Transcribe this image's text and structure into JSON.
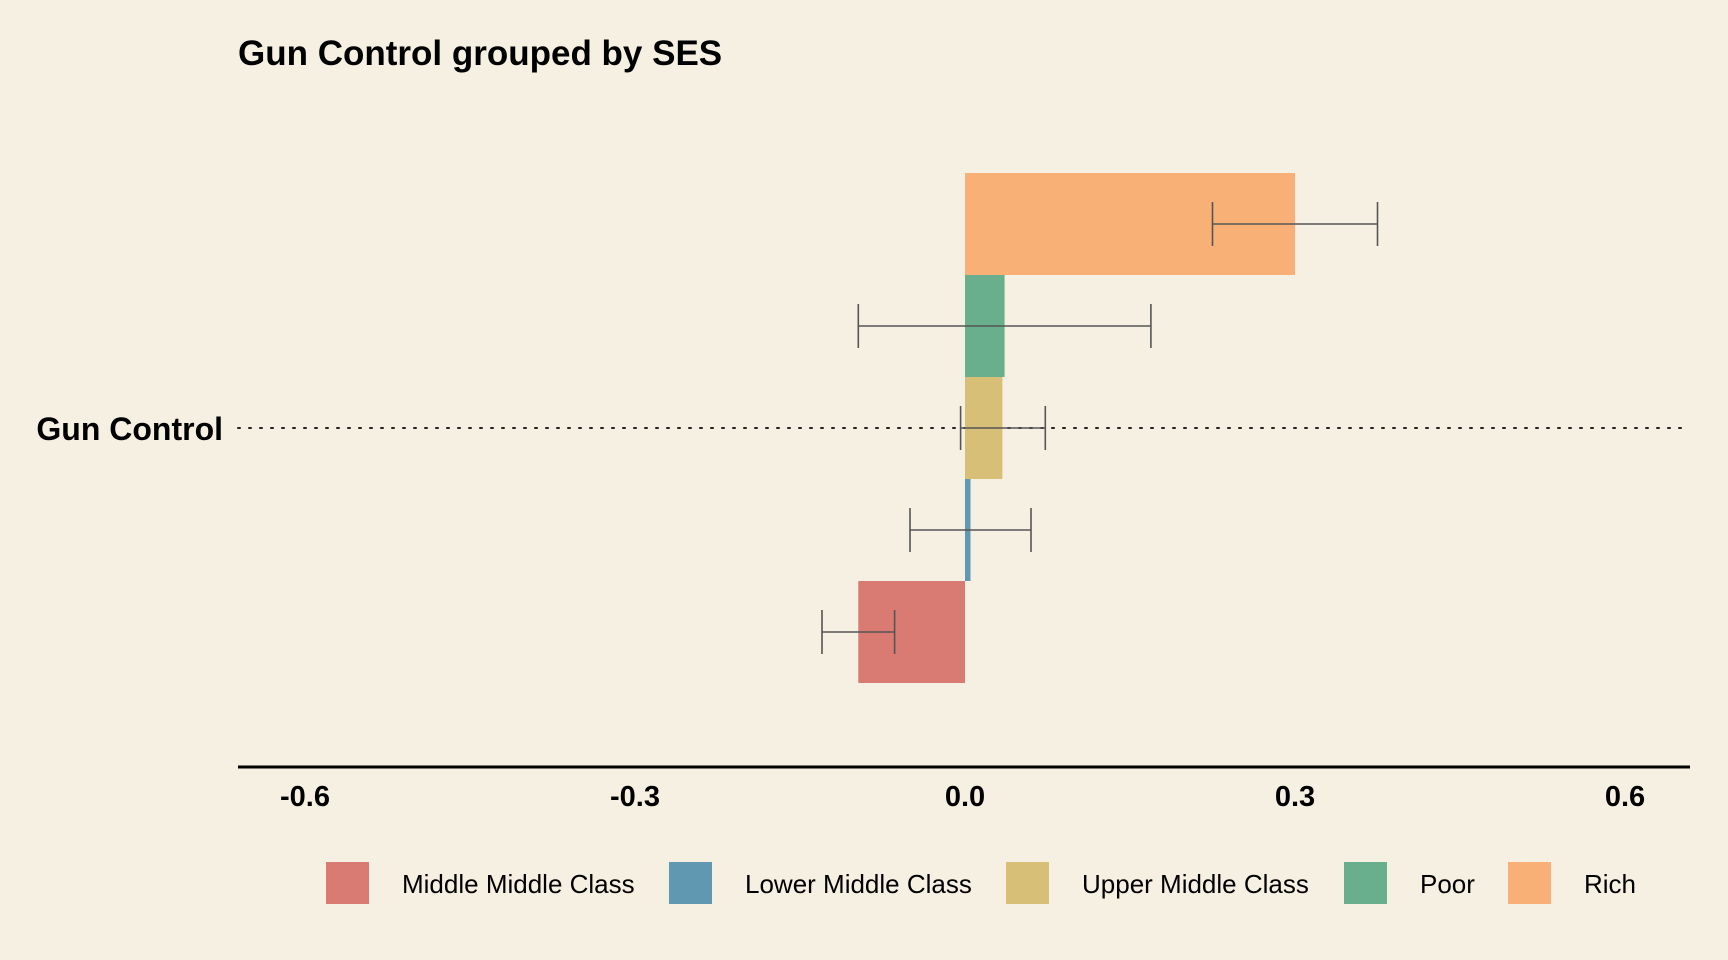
{
  "chart_data": {
    "type": "bar",
    "orientation": "horizontal",
    "title": "Gun Control grouped by SES",
    "category": "Gun Control",
    "xlim": [
      -0.66,
      0.66
    ],
    "x_ticks": [
      "-0.6",
      "-0.3",
      "0.0",
      "0.3",
      "0.6"
    ],
    "x_tick_values": [
      -0.6,
      -0.3,
      0.0,
      0.3,
      0.6
    ],
    "grid": false,
    "legend_position": "bottom",
    "series": [
      {
        "name": "Rich",
        "color": "#f9b077",
        "value": 0.3,
        "ci": [
          0.225,
          0.375
        ]
      },
      {
        "name": "Poor",
        "color": "#6aaf8d",
        "value": 0.036,
        "ci": [
          -0.097,
          0.169
        ]
      },
      {
        "name": "Upper Middle Class",
        "color": "#d8bf77",
        "value": 0.034,
        "ci": [
          -0.004,
          0.073
        ]
      },
      {
        "name": "Lower Middle Class",
        "color": "#6198b1",
        "value": 0.005,
        "ci": [
          -0.05,
          0.06
        ]
      },
      {
        "name": "Middle Middle Class",
        "color": "#d97b73",
        "value": -0.097,
        "ci": [
          -0.13,
          -0.064
        ]
      }
    ],
    "legend_order": [
      "Middle Middle Class",
      "Lower Middle Class",
      "Upper Middle Class",
      "Poor",
      "Rich"
    ]
  }
}
